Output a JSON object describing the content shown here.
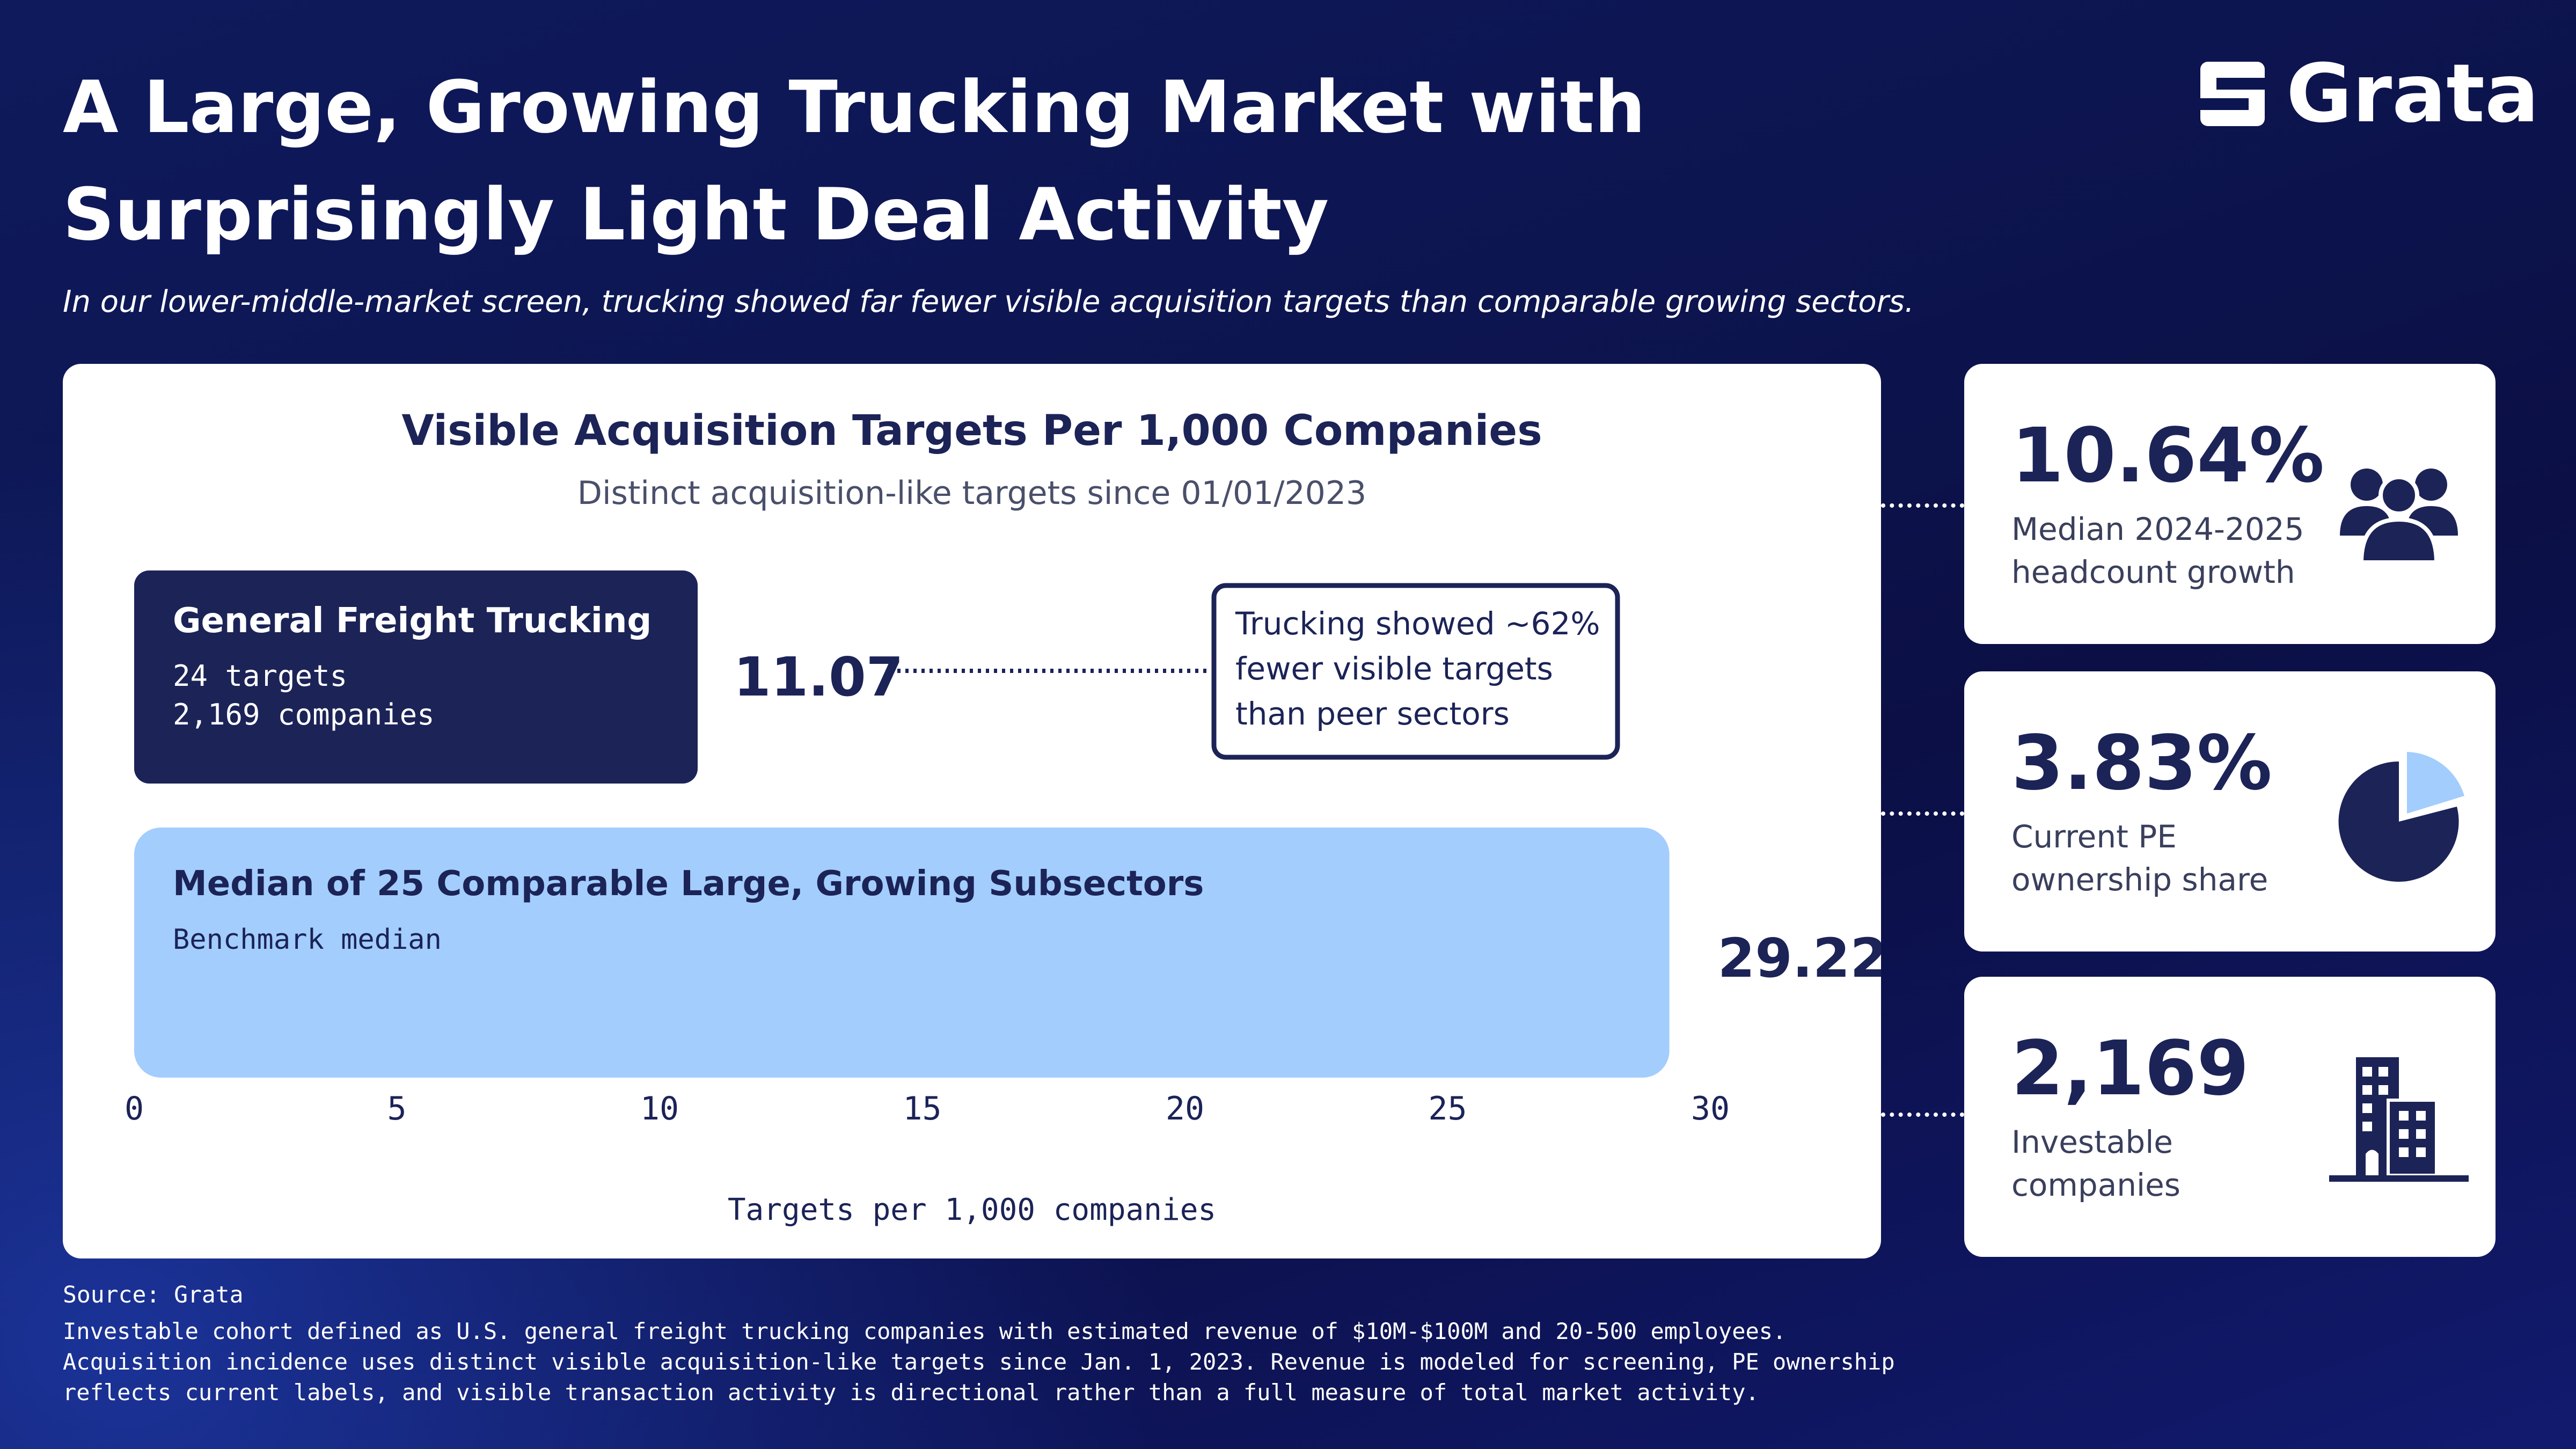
{
  "header": {
    "title_line1": "A Large, Growing Trucking Market with",
    "title_line2": "Surprisingly Light Deal Activity",
    "subtitle": "In our lower-middle-market screen, trucking showed far fewer visible acquisition targets than comparable growing sectors.",
    "logo_text": "Grata"
  },
  "chart_data": {
    "type": "bar",
    "orientation": "horizontal",
    "title": "Visible Acquisition Targets Per 1,000 Companies",
    "subtitle": "Distinct acquisition-like targets since 01/01/2023",
    "xlabel": "Targets per 1,000 companies",
    "xlim": [
      0,
      30
    ],
    "xticks": [
      0,
      5,
      10,
      15,
      20,
      25,
      30
    ],
    "grid": false,
    "bars": [
      {
        "label": "General Freight Trucking",
        "detail_lines": [
          "24 targets",
          "2,169 companies"
        ],
        "value": 11.07,
        "value_label": "11.07",
        "color": "#1b2357"
      },
      {
        "label": "Median of 25 Comparable Large, Growing Subsectors",
        "detail_lines": [
          "Benchmark median"
        ],
        "value": 29.22,
        "value_label": "29.22",
        "color": "#a3cdfd"
      }
    ],
    "annotation": {
      "lines": [
        "Trucking showed ~62%",
        "fewer visible targets",
        "than peer sectors"
      ]
    }
  },
  "stats": [
    {
      "value": "10.64%",
      "label_lines": [
        "Median 2024-2025",
        "headcount growth"
      ],
      "icon": "people-icon"
    },
    {
      "value": "3.83%",
      "label_lines": [
        "Current PE",
        "ownership share"
      ],
      "icon": "pie-chart-icon",
      "share": 3.83
    },
    {
      "value": "2,169",
      "label_lines": [
        "Investable",
        "companies"
      ],
      "icon": "buildings-icon"
    }
  ],
  "footer": {
    "source": "Source: Grata",
    "notes": [
      "Investable cohort defined as U.S. general freight trucking companies with estimated revenue of $10M-$100M and 20-500 employees.",
      "Acquisition incidence uses distinct visible acquisition-like targets since Jan. 1, 2023. Revenue is modeled for screening, PE ownership",
      "reflects current labels, and visible transaction activity is directional rather than a full measure of total market activity."
    ]
  },
  "colors": {
    "navy": "#1b2357",
    "light_blue": "#a3cdfd",
    "background": "#0d1550"
  }
}
